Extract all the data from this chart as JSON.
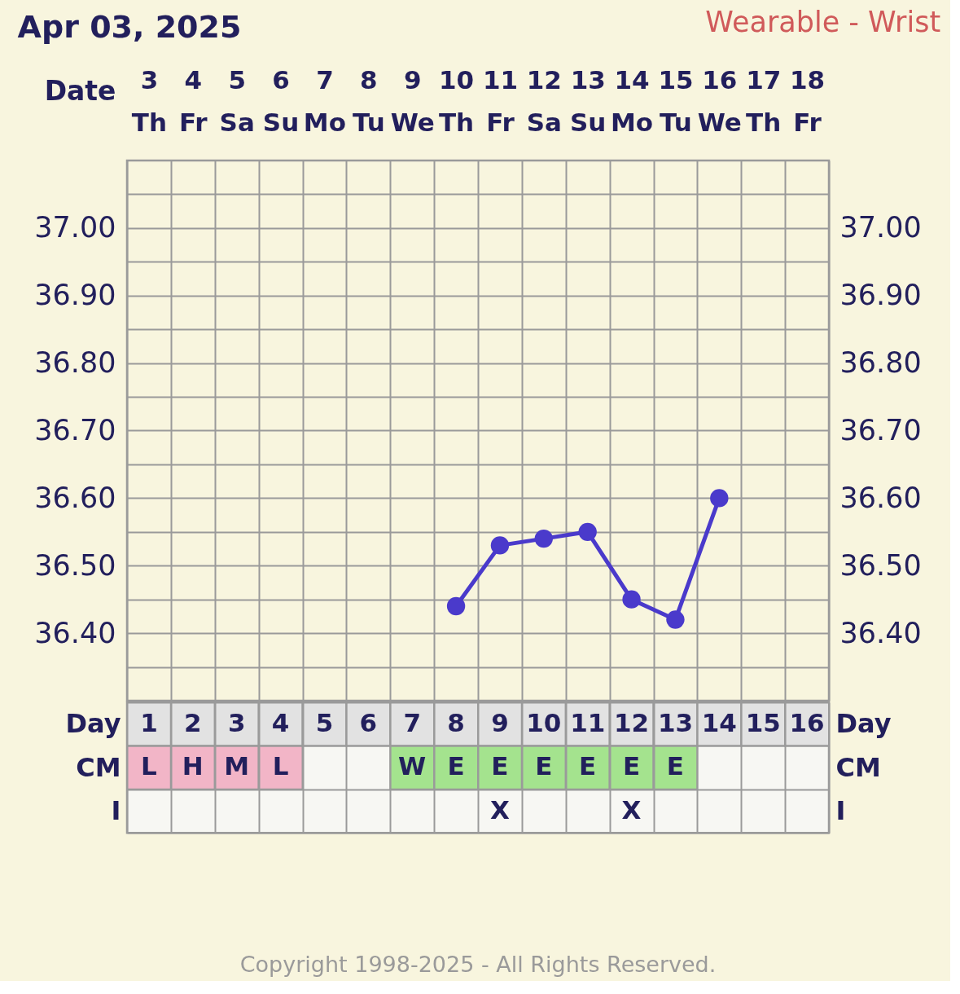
{
  "chart_data": [
    {
      "type": "line",
      "title": "Apr 03, 2025",
      "subtitle": "Wearable - Wrist",
      "xlabel": "Date",
      "categories": [
        "3 Th",
        "4 Fr",
        "5 Sa",
        "6 Su",
        "7 Mo",
        "8 Tu",
        "9 We",
        "10 Th",
        "11 Fr",
        "12 Sa",
        "13 Su",
        "14 Mo",
        "15 Tu",
        "16 We",
        "17 Th",
        "18 Fr"
      ],
      "series": [
        {
          "color": "#4a3acb",
          "values": [
            null,
            null,
            null,
            null,
            null,
            null,
            null,
            36.44,
            36.53,
            36.54,
            36.55,
            36.45,
            36.42,
            36.6,
            null,
            null
          ]
        }
      ],
      "ylim": [
        36.3,
        37.1
      ],
      "yticks": [
        {
          "value": 36.35,
          "label": null
        },
        {
          "value": 36.4,
          "label": "36.40"
        },
        {
          "value": 36.45,
          "label": null
        },
        {
          "value": 36.5,
          "label": "36.50"
        },
        {
          "value": 36.55,
          "label": null
        },
        {
          "value": 36.6,
          "label": "36.60"
        },
        {
          "value": 36.65,
          "label": null
        },
        {
          "value": 36.7,
          "label": "36.70"
        },
        {
          "value": 36.75,
          "label": null
        },
        {
          "value": 36.8,
          "label": "36.80"
        },
        {
          "value": 36.85,
          "label": null
        },
        {
          "value": 36.9,
          "label": "36.90"
        },
        {
          "value": 36.95,
          "label": null
        },
        {
          "value": 37.0,
          "label": "37.00"
        },
        {
          "value": 37.05,
          "label": null
        }
      ],
      "y2lim": [
        36.3,
        37.1
      ],
      "y2ticks": [
        {
          "value": 36.35,
          "label": null
        },
        {
          "value": 36.4,
          "label": "36.40"
        },
        {
          "value": 36.45,
          "label": null
        },
        {
          "value": 36.5,
          "label": "36.50"
        },
        {
          "value": 36.55,
          "label": null
        },
        {
          "value": 36.6,
          "label": "36.60"
        },
        {
          "value": 36.65,
          "label": null
        },
        {
          "value": 36.7,
          "label": "36.70"
        },
        {
          "value": 36.75,
          "label": null
        },
        {
          "value": 36.8,
          "label": "36.80"
        },
        {
          "value": 36.85,
          "label": null
        },
        {
          "value": 36.9,
          "label": "36.90"
        },
        {
          "value": 36.95,
          "label": null
        },
        {
          "value": 37.0,
          "label": "37.00"
        },
        {
          "value": 37.05,
          "label": null
        }
      ],
      "grid": true,
      "marker": "circle",
      "line_style": "solid"
    },
    {
      "type": "heatmap",
      "xlabel": "Day",
      "categories": [
        "1",
        "2",
        "3",
        "4",
        "5",
        "6",
        "7",
        "8",
        "9",
        "10",
        "11",
        "12",
        "13",
        "14",
        "15",
        "16"
      ],
      "y_categories": [
        "CM",
        "I"
      ],
      "y2_categories": [
        "CM",
        "I"
      ],
      "cells": [
        [
          "L",
          "H",
          "M",
          "L",
          null,
          null,
          "W",
          "E",
          "E",
          "E",
          "E",
          "E",
          "E",
          null,
          null,
          null
        ],
        [
          null,
          null,
          null,
          null,
          null,
          null,
          null,
          null,
          "X",
          null,
          null,
          "X",
          null,
          null,
          null,
          null
        ]
      ],
      "colors": [
        [
          "#f2b5c7",
          "#f2b5c7",
          "#f2b5c7",
          "#f2b5c7",
          null,
          null,
          "#a4e38e",
          "#a4e38e",
          "#a4e38e",
          "#a4e38e",
          "#a4e38e",
          "#a4e38e",
          "#a4e38e",
          null,
          null,
          null
        ],
        [
          null,
          null,
          null,
          null,
          null,
          null,
          null,
          null,
          null,
          null,
          null,
          null,
          null,
          null,
          null,
          null
        ]
      ],
      "grid": true,
      "annotations": [
        "Copyright 1998-2025 - All Rights Reserved."
      ]
    }
  ]
}
